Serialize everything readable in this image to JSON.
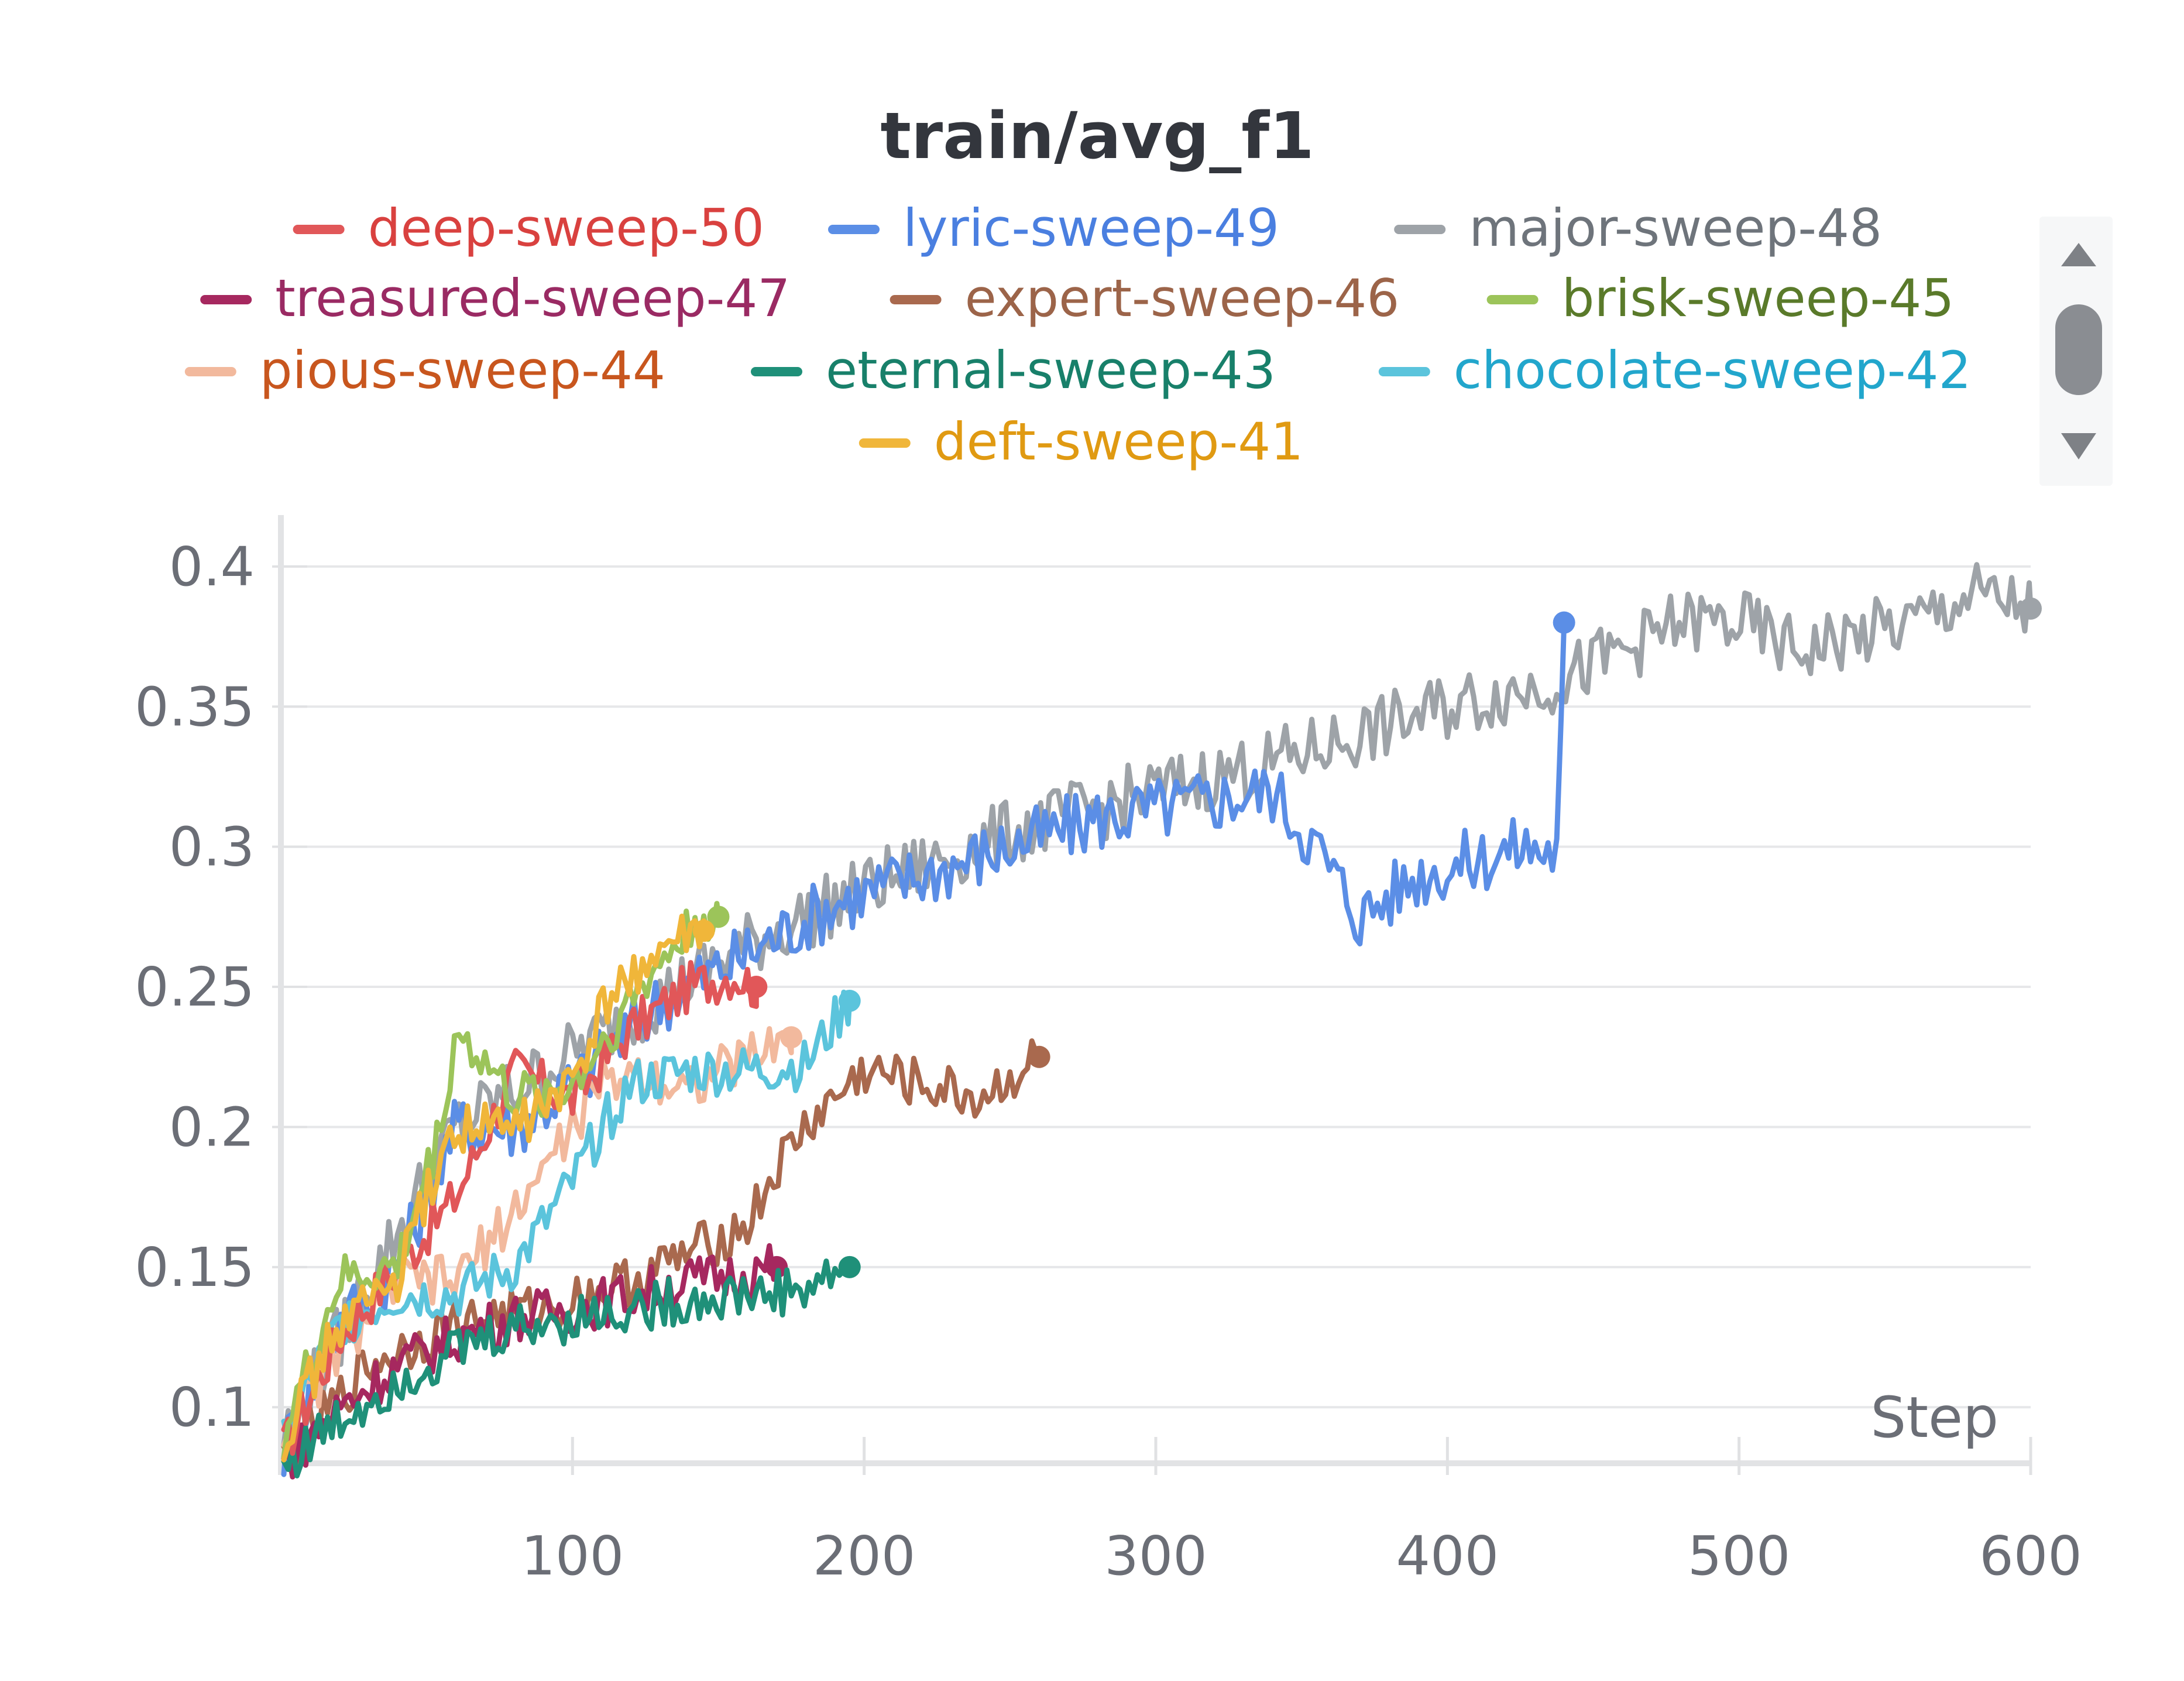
{
  "chart_data": {
    "type": "line",
    "title": "train/avg_f1",
    "xlabel": "Step",
    "ylabel": "",
    "xlim": [
      0,
      600
    ],
    "ylim": [
      0.08,
      0.41
    ],
    "x_ticks": [
      100,
      200,
      300,
      400,
      500,
      600
    ],
    "y_ticks": [
      0.1,
      0.15,
      0.2,
      0.25,
      0.3,
      0.35,
      0.4
    ],
    "x_tick_labels": [
      "100",
      "200",
      "300",
      "400",
      "500",
      "600"
    ],
    "y_tick_labels": [
      "0.1",
      "0.15",
      "0.2",
      "0.25",
      "0.3",
      "0.35",
      "0.4"
    ],
    "grid": true,
    "legend_position": "top",
    "series": [
      {
        "name": "deep-sweep-50",
        "color": "#e15759",
        "text_color": "#d9413f",
        "x": [
          1,
          20,
          40,
          60,
          80,
          100,
          120,
          140,
          155,
          163
        ],
        "y": [
          0.085,
          0.125,
          0.15,
          0.175,
          0.22,
          0.21,
          0.235,
          0.25,
          0.255,
          0.25
        ]
      },
      {
        "name": "lyric-sweep-49",
        "color": "#5b8ee6",
        "text_color": "#4a7fe0",
        "x": [
          1,
          20,
          40,
          60,
          80,
          100,
          130,
          160,
          190,
          220,
          250,
          280,
          310,
          340,
          355,
          370,
          390,
          410,
          425,
          438,
          440
        ],
        "y": [
          0.085,
          0.13,
          0.15,
          0.2,
          0.2,
          0.215,
          0.245,
          0.262,
          0.28,
          0.29,
          0.3,
          0.31,
          0.315,
          0.32,
          0.3,
          0.275,
          0.29,
          0.295,
          0.3,
          0.298,
          0.38
        ]
      },
      {
        "name": "major-sweep-48",
        "color": "#9ea3a8",
        "text_color": "#6e747b",
        "x": [
          1,
          60,
          120,
          160,
          200,
          250,
          300,
          340,
          370,
          400,
          420,
          440,
          460,
          480,
          500,
          520,
          540,
          560,
          580,
          600
        ],
        "y": [
          0.09,
          0.2,
          0.24,
          0.265,
          0.285,
          0.305,
          0.32,
          0.33,
          0.34,
          0.35,
          0.355,
          0.36,
          0.37,
          0.38,
          0.38,
          0.37,
          0.375,
          0.38,
          0.39,
          0.385
        ]
      },
      {
        "name": "treasured-sweep-47",
        "color": "#a6285f",
        "text_color": "#9a2a63",
        "x": [
          1,
          20,
          40,
          60,
          80,
          100,
          120,
          140,
          160,
          170
        ],
        "y": [
          0.08,
          0.1,
          0.115,
          0.125,
          0.132,
          0.135,
          0.14,
          0.145,
          0.148,
          0.15
        ]
      },
      {
        "name": "expert-sweep-46",
        "color": "#a9694e",
        "text_color": "#9c6449",
        "x": [
          1,
          30,
          60,
          90,
          120,
          140,
          150,
          160,
          170,
          180,
          200,
          220,
          240,
          260
        ],
        "y": [
          0.08,
          0.115,
          0.13,
          0.135,
          0.145,
          0.155,
          0.16,
          0.165,
          0.185,
          0.2,
          0.22,
          0.215,
          0.21,
          0.225
        ]
      },
      {
        "name": "brisk-sweep-45",
        "color": "#9cc45a",
        "text_color": "#5a7a2a",
        "x": [
          1,
          20,
          40,
          55,
          60,
          80,
          100,
          120,
          135,
          145,
          150
        ],
        "y": [
          0.09,
          0.145,
          0.15,
          0.2,
          0.235,
          0.21,
          0.215,
          0.245,
          0.265,
          0.275,
          0.275
        ]
      },
      {
        "name": "pious-sweep-44",
        "color": "#f2b99d",
        "text_color": "#c8561e",
        "x": [
          1,
          20,
          40,
          60,
          80,
          100,
          110,
          120,
          140,
          160,
          175
        ],
        "y": [
          0.09,
          0.12,
          0.145,
          0.145,
          0.17,
          0.2,
          0.215,
          0.22,
          0.215,
          0.225,
          0.232
        ]
      },
      {
        "name": "eternal-sweep-43",
        "color": "#1f9079",
        "text_color": "#18806a",
        "x": [
          1,
          20,
          40,
          60,
          80,
          100,
          120,
          140,
          160,
          180,
          195
        ],
        "y": [
          0.08,
          0.095,
          0.11,
          0.12,
          0.128,
          0.132,
          0.135,
          0.138,
          0.14,
          0.142,
          0.15
        ]
      },
      {
        "name": "chocolate-sweep-42",
        "color": "#5bc4dc",
        "text_color": "#22a6cc",
        "x": [
          1,
          20,
          40,
          60,
          80,
          90,
          100,
          110,
          120,
          140,
          160,
          180,
          195
        ],
        "y": [
          0.09,
          0.13,
          0.14,
          0.14,
          0.15,
          0.165,
          0.18,
          0.2,
          0.215,
          0.22,
          0.22,
          0.222,
          0.245
        ]
      },
      {
        "name": "deft-sweep-41",
        "color": "#f0b63a",
        "text_color": "#e09a12",
        "x": [
          1,
          20,
          40,
          50,
          60,
          80,
          100,
          110,
          120,
          135,
          145
        ],
        "y": [
          0.09,
          0.13,
          0.145,
          0.175,
          0.2,
          0.2,
          0.215,
          0.24,
          0.255,
          0.265,
          0.27
        ]
      }
    ]
  },
  "legend": {
    "items": [
      "deep-sweep-50",
      "lyric-sweep-49",
      "major-sweep-48",
      "treasured-sweep-47",
      "expert-sweep-46",
      "brisk-sweep-45",
      "pious-sweep-44",
      "eternal-sweep-43",
      "chocolate-sweep-42",
      "deft-sweep-41"
    ]
  },
  "scroll": {
    "up_icon": "triangle-up-icon",
    "down_icon": "triangle-down-icon"
  }
}
